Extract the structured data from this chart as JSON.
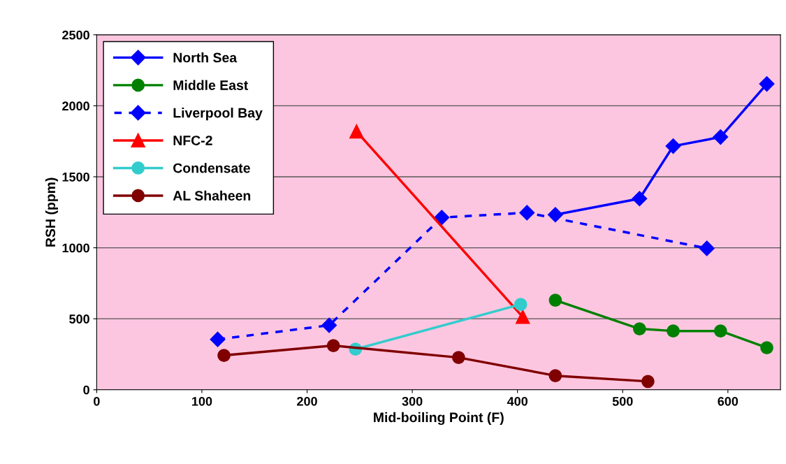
{
  "chart_data": {
    "type": "line",
    "xlabel": "Mid-boiling Point (F)",
    "ylabel": "RSH (ppm)",
    "xlim": [
      0,
      650
    ],
    "xticks": [
      0,
      100,
      200,
      300,
      400,
      500,
      600
    ],
    "ylim": [
      0,
      2500
    ],
    "yticks": [
      0,
      500,
      1000,
      1500,
      2000,
      2500
    ],
    "grid": "y",
    "legend": "top left",
    "series": [
      {
        "name": "North Sea",
        "color": "#0000ff",
        "marker": "diamond",
        "line_style": "solid",
        "x": [
          436,
          516,
          548,
          593,
          637
        ],
        "values": [
          1233,
          1346,
          1716,
          1780,
          2154
        ]
      },
      {
        "name": "Middle East",
        "color": "#008000",
        "marker": "circle",
        "line_style": "solid",
        "x": [
          436,
          516,
          548,
          593,
          637
        ],
        "values": [
          631,
          429,
          414,
          414,
          296
        ]
      },
      {
        "name": "Liverpool Bay",
        "color": "#0000ff",
        "marker": "diamond",
        "line_style": "dashed",
        "x": [
          115,
          221,
          328,
          409,
          580
        ],
        "values": [
          355,
          454,
          1213,
          1247,
          996
        ]
      },
      {
        "name": "NFC-2",
        "color": "#ff0000",
        "marker": "triangle",
        "line_style": "solid",
        "x": [
          247,
          405
        ],
        "values": [
          1819,
          513
        ]
      },
      {
        "name": "Condensate",
        "color": "#33cccc",
        "marker": "circle",
        "line_style": "solid",
        "x": [
          246,
          403
        ],
        "values": [
          286,
          601
        ]
      },
      {
        "name": "AL Shaheen",
        "color": "#800000",
        "marker": "circle",
        "line_style": "solid",
        "x": [
          121,
          225,
          344,
          436,
          524
        ],
        "values": [
          242,
          311,
          227,
          99,
          59
        ]
      }
    ]
  }
}
